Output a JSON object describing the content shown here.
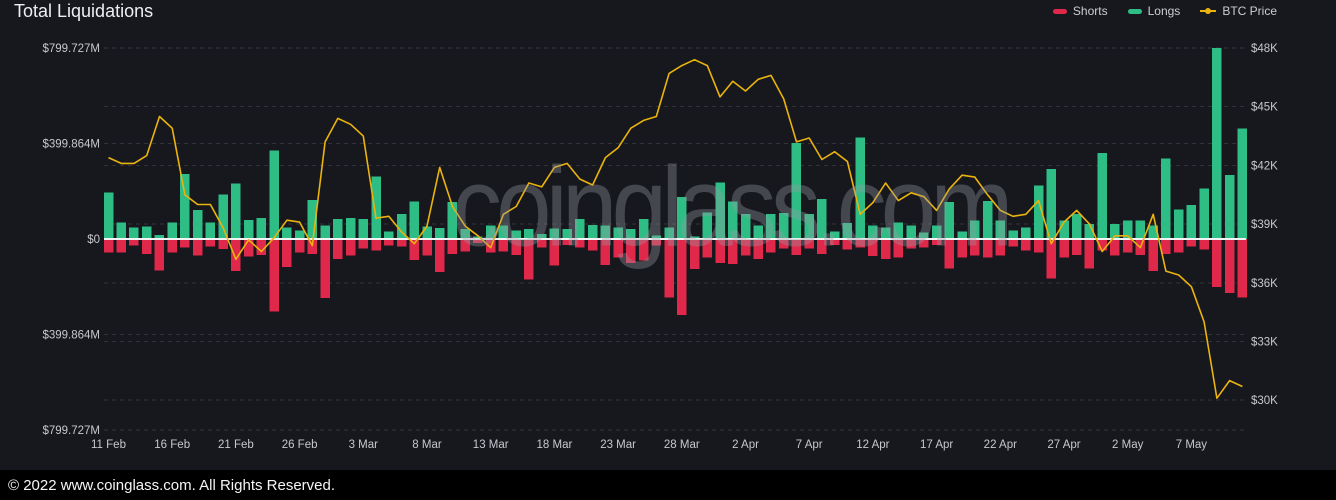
{
  "header": {
    "title": "Total Liquidations"
  },
  "legend": [
    {
      "label": "Shorts",
      "color": "#e0294a",
      "marker": "bar"
    },
    {
      "label": "Longs",
      "color": "#2ebd85",
      "marker": "bar"
    },
    {
      "label": "BTC Price",
      "color": "#ebb30d",
      "marker": "line"
    }
  ],
  "watermark": "coinglass.com",
  "footer": {
    "copyright": "© 2022 www.coinglass.com. All Rights Reserved."
  },
  "colors": {
    "background": "#16181d",
    "shorts": "#e0294a",
    "longs": "#2ebd85",
    "btc_price": "#ebb30d",
    "zero_line": "#f2f3f5",
    "gridline": "#3a3d45",
    "axis_text": "#c6c8ce",
    "footer_background": "#000000"
  },
  "chart_data": {
    "type": "bar+line",
    "title": "Total Liquidations",
    "legend_position": "top-right",
    "grid": "dashed-horizontal",
    "categories": [
      "11 Feb",
      "12 Feb",
      "13 Feb",
      "14 Feb",
      "15 Feb",
      "16 Feb",
      "17 Feb",
      "18 Feb",
      "19 Feb",
      "20 Feb",
      "21 Feb",
      "22 Feb",
      "23 Feb",
      "24 Feb",
      "25 Feb",
      "26 Feb",
      "27 Feb",
      "28 Feb",
      "1 Mar",
      "2 Mar",
      "3 Mar",
      "4 Mar",
      "5 Mar",
      "6 Mar",
      "7 Mar",
      "8 Mar",
      "9 Mar",
      "10 Mar",
      "11 Mar",
      "12 Mar",
      "13 Mar",
      "14 Mar",
      "15 Mar",
      "16 Mar",
      "17 Mar",
      "18 Mar",
      "19 Mar",
      "20 Mar",
      "21 Mar",
      "22 Mar",
      "23 Mar",
      "24 Mar",
      "25 Mar",
      "26 Mar",
      "27 Mar",
      "28 Mar",
      "29 Mar",
      "30 Mar",
      "31 Mar",
      "1 Apr",
      "2 Apr",
      "3 Apr",
      "4 Apr",
      "5 Apr",
      "6 Apr",
      "7 Apr",
      "8 Apr",
      "9 Apr",
      "10 Apr",
      "11 Apr",
      "12 Apr",
      "13 Apr",
      "14 Apr",
      "15 Apr",
      "16 Apr",
      "17 Apr",
      "18 Apr",
      "19 Apr",
      "20 Apr",
      "21 Apr",
      "22 Apr",
      "23 Apr",
      "24 Apr",
      "25 Apr",
      "26 Apr",
      "27 Apr",
      "28 Apr",
      "29 Apr",
      "30 Apr",
      "1 May",
      "2 May",
      "3 May",
      "4 May",
      "5 May",
      "6 May",
      "7 May",
      "8 May",
      "9 May",
      "10 May",
      "11 May"
    ],
    "series": [
      {
        "name": "Longs",
        "axis": "left",
        "unit": "$M",
        "direction": "up",
        "color": "#2ebd85",
        "values": [
          195,
          70,
          49,
          52,
          17,
          70,
          272,
          121,
          70,
          186,
          233,
          80,
          88,
          370,
          49,
          35,
          163,
          56,
          84,
          88,
          84,
          261,
          31,
          105,
          158,
          52,
          47,
          154,
          42,
          10,
          56,
          56,
          35,
          42,
          21,
          45,
          42,
          84,
          59,
          56,
          49,
          42,
          84,
          14,
          49,
          175,
          10,
          112,
          237,
          156,
          105,
          56,
          105,
          109,
          401,
          105,
          167,
          31,
          66,
          426,
          56,
          49,
          70,
          56,
          28,
          56,
          154,
          32,
          77,
          160,
          77,
          35,
          49,
          223,
          293,
          77,
          105,
          63,
          360,
          63,
          77,
          77,
          56,
          338,
          123,
          142,
          212,
          799.727,
          268,
          463
        ]
      },
      {
        "name": "Shorts",
        "axis": "left",
        "unit": "$M",
        "direction": "down",
        "color": "#e0294a",
        "values": [
          56,
          56,
          28,
          63,
          132,
          56,
          35,
          70,
          32,
          42,
          135,
          74,
          66,
          303,
          118,
          56,
          63,
          248,
          84,
          70,
          39,
          49,
          28,
          31,
          88,
          70,
          139,
          63,
          53,
          17,
          56,
          53,
          67,
          170,
          35,
          112,
          25,
          35,
          49,
          109,
          77,
          100,
          91,
          28,
          244,
          318,
          126,
          77,
          100,
          105,
          70,
          84,
          56,
          39,
          67,
          39,
          63,
          25,
          45,
          35,
          72,
          84,
          77,
          39,
          35,
          25,
          123,
          77,
          70,
          77,
          70,
          31,
          49,
          56,
          165,
          77,
          67,
          123,
          49,
          70,
          56,
          67,
          133,
          63,
          56,
          31,
          45,
          202,
          226,
          244
        ]
      },
      {
        "name": "BTC Price",
        "axis": "right",
        "unit": "$K",
        "color": "#ebb30d",
        "values": [
          42.4,
          42.1,
          42.1,
          42.5,
          44.5,
          43.9,
          40.5,
          40.0,
          40.0,
          38.8,
          37.2,
          38.2,
          37.6,
          38.3,
          39.2,
          39.1,
          37.9,
          43.2,
          44.4,
          44.1,
          43.5,
          39.3,
          39.4,
          38.6,
          38.0,
          38.9,
          41.9,
          39.9,
          38.9,
          38.4,
          37.8,
          39.5,
          39.9,
          41.1,
          40.9,
          41.9,
          42.1,
          41.3,
          41.0,
          42.4,
          42.9,
          43.9,
          44.3,
          44.5,
          46.7,
          47.1,
          47.4,
          47.1,
          45.5,
          46.3,
          45.8,
          46.4,
          46.6,
          45.4,
          43.2,
          43.4,
          42.3,
          42.7,
          42.2,
          39.5,
          40.1,
          41.1,
          40.2,
          40.6,
          40.4,
          39.7,
          40.8,
          41.5,
          41.4,
          40.5,
          39.7,
          39.4,
          39.5,
          40.2,
          38.0,
          39.1,
          39.7,
          39.0,
          37.6,
          38.4,
          38.4,
          37.8,
          39.5,
          36.6,
          36.4,
          35.8,
          34.0,
          30.1,
          31.0,
          30.7
        ]
      }
    ],
    "left_axis": {
      "max": 799.727,
      "values": [
        799.727,
        399.864,
        0,
        -399.864,
        -799.727
      ],
      "labels": [
        "$799.727M",
        "$399.864M",
        "$0",
        "$399.864M",
        "$799.727M"
      ]
    },
    "right_axis": {
      "values": [
        48,
        45,
        42,
        39,
        36,
        33,
        30
      ],
      "labels": [
        "$48K",
        "$45K",
        "$42K",
        "$39K",
        "$36K",
        "$33K",
        "$30K"
      ]
    },
    "x_tick_labels": [
      "11 Feb",
      "16 Feb",
      "21 Feb",
      "26 Feb",
      "3 Mar",
      "8 Mar",
      "13 Mar",
      "18 Mar",
      "23 Mar",
      "28 Mar",
      "2 Apr",
      "7 Apr",
      "12 Apr",
      "17 Apr",
      "22 Apr",
      "27 Apr",
      "2 May",
      "7 May"
    ],
    "x_tick_every": 5
  }
}
